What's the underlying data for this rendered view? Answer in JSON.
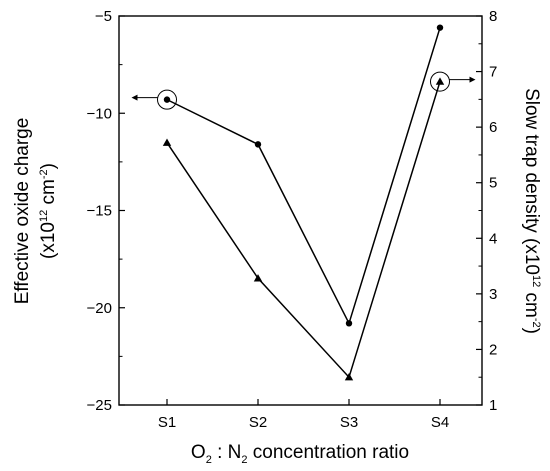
{
  "chart_data": {
    "type": "line",
    "title": "",
    "categories": [
      "S1",
      "S2",
      "S3",
      "S4"
    ],
    "xlabel": {
      "o": "O",
      "o_sub": "2",
      "mid": " : N",
      "n_sub": "2",
      "rest": " concentration ratio"
    },
    "ylabel_left": {
      "line1": "Effective oxide charge",
      "line2_pre": "(x10",
      "line2_sup": "12",
      "line2_mid": " cm",
      "line2_sup2": "-2",
      "line2_post": ")"
    },
    "ylabel_right": {
      "pre": "Slow trap density (x10",
      "sup": "12",
      "mid": " cm",
      "sup2": "-2",
      "post": ")"
    },
    "ylim_left": [
      -25,
      -5
    ],
    "yticks_left": [
      -25,
      -20,
      -15,
      -10,
      -5
    ],
    "ylim_right": [
      1,
      8
    ],
    "yticks_right": [
      1,
      2,
      3,
      4,
      5,
      6,
      7,
      8
    ],
    "series": [
      {
        "axis": "left",
        "marker": "circle",
        "values": [
          -9.3,
          -11.6,
          -20.8,
          -5.6
        ]
      },
      {
        "axis": "right",
        "marker": "triangle",
        "values": [
          5.72,
          3.28,
          1.5,
          6.82
        ]
      }
    ],
    "annotations": [
      {
        "type": "circle-arrow",
        "series": 0,
        "point": 0,
        "direction": "left"
      },
      {
        "type": "circle-arrow",
        "series": 1,
        "point": 3,
        "direction": "right"
      }
    ],
    "grid": false,
    "legend": "none"
  }
}
